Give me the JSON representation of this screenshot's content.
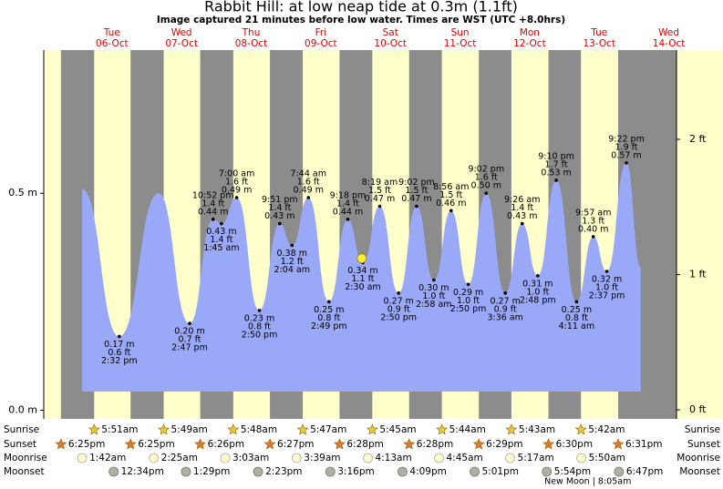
{
  "chart_data": {
    "type": "area",
    "title": "Rabbit Hill: at low  neap tide at 0.3m (1.1ft)",
    "subtitle": "Image captured 21 minutes before low water. Times are WST (UTC +8.0hrs)",
    "days": [
      "Tue",
      "Wed",
      "Thu",
      "Fri",
      "Sat",
      "Sun",
      "Mon",
      "Tue",
      "Wed"
    ],
    "dates": [
      "06-Oct",
      "07-Oct",
      "08-Oct",
      "09-Oct",
      "10-Oct",
      "11-Oct",
      "12-Oct",
      "13-Oct",
      "14-Oct"
    ],
    "x": [
      0.07,
      0.605,
      1.17,
      1.616,
      1.953,
      2.073,
      2.292,
      2.618,
      2.91,
      3.086,
      3.322,
      3.617,
      3.888,
      4.104,
      4.347,
      4.618,
      4.876,
      5.124,
      5.372,
      5.618,
      5.876,
      6.15,
      6.393,
      6.617,
      6.882,
      7.174,
      7.415,
      7.609,
      7.89,
      8.096
    ],
    "values": [
      0.51,
      0.17,
      0.5,
      0.2,
      0.44,
      0.43,
      0.49,
      0.23,
      0.43,
      0.38,
      0.49,
      0.25,
      0.44,
      0.34,
      0.47,
      0.27,
      0.47,
      0.3,
      0.46,
      0.29,
      0.5,
      0.27,
      0.43,
      0.31,
      0.53,
      0.25,
      0.4,
      0.32,
      0.57,
      0.33
    ],
    "value_labels": [
      null,
      "0.17 m",
      null,
      "0.20 m",
      "0.44 m",
      "0.43 m",
      "0.49 m",
      "0.23 m",
      "0.43 m",
      "0.38 m",
      "0.49 m",
      "0.25 m",
      "0.44 m",
      "0.34 m",
      "0.47 m",
      "0.27 m",
      "0.47 m",
      "0.30 m",
      "0.46 m",
      "0.29 m",
      "0.50 m",
      "0.27 m",
      "0.43 m",
      "0.31 m",
      "0.53 m",
      "0.25 m",
      "0.40 m",
      "0.32 m",
      "0.57 m",
      null
    ],
    "ft_labels": [
      null,
      "0.6 ft",
      null,
      "0.7 ft",
      "1.4 ft",
      "1.4 ft",
      "1.6 ft",
      "0.8 ft",
      "1.4 ft",
      "1.2 ft",
      "1.6 ft",
      "0.8 ft",
      "1.4 ft",
      "1.1 ft",
      "1.5 ft",
      "0.9 ft",
      "1.5 ft",
      "1.0 ft",
      "1.5 ft",
      "1.0 ft",
      "1.6 ft",
      "0.9 ft",
      "1.4 ft",
      "1.0 ft",
      "1.7 ft",
      "0.8 ft",
      "1.3 ft",
      "1.0 ft",
      "1.9 ft",
      null
    ],
    "time_labels": [
      null,
      "2:32 pm",
      null,
      "2:47 pm",
      "10:52 pm",
      "1:45 am",
      "7:00 am",
      "2:50 pm",
      "9:51 pm",
      "2:04 am",
      "7:44 am",
      "2:49 pm",
      "9:18 pm",
      "2:30 am",
      "8:19 am",
      "2:50 pm",
      "9:02 pm",
      "2:58 am",
      "8:56 am",
      "2:50 pm",
      "9:02 pm",
      "3:36 am",
      "9:26 am",
      "2:48 pm",
      "9:10 pm",
      "4:11 am",
      "9:57 am",
      "2:37 pm",
      "9:22 pm",
      null
    ],
    "now": {
      "x": 4.089,
      "value": 0.35
    },
    "color": "#9aa8f8",
    "day_color": "#ffffcc",
    "night_color": "#8c8c8c",
    "xlim": [
      -0.48,
      8.61
    ],
    "ylim": [
      -0.02,
      0.83
    ],
    "yticks": [
      {
        "value": 0,
        "label": "0.0 m"
      },
      {
        "value": 0.5,
        "label": "0.5 m"
      }
    ],
    "y2lim": [
      -0.067,
      2.66
    ],
    "y2ticks": [
      {
        "value": 0,
        "label": "0 ft"
      },
      {
        "value": 1,
        "label": "1 ft"
      },
      {
        "value": 2,
        "label": "2 ft"
      }
    ],
    "events": [
      {
        "name": "Sunrise",
        "x": [
          0.244,
          1.243,
          2.242,
          3.241,
          4.24,
          5.239,
          6.238,
          7.2375
        ],
        "labels": [
          "5:51am",
          "5:49am",
          "5:48am",
          "5:47am",
          "5:45am",
          "5:44am",
          "5:43am",
          "5:42am"
        ]
      },
      {
        "name": "Sunset",
        "x": [
          -0.233,
          0.767,
          1.768,
          2.769,
          3.769,
          4.769,
          5.77,
          6.771,
          7.772
        ],
        "labels": [
          "6:25pm",
          "6:25pm",
          "6:26pm",
          "6:27pm",
          "6:28pm",
          "6:28pm",
          "6:29pm",
          "6:30pm",
          "6:31pm"
        ]
      },
      {
        "name": "Moonrise",
        "x": [
          0.071,
          1.101,
          2.127,
          3.152,
          4.176,
          5.198,
          6.22,
          7.243
        ],
        "labels": [
          "1:42am",
          "2:25am",
          "3:03am",
          "3:39am",
          "4:13am",
          "4:45am",
          "5:17am",
          "5:50am"
        ]
      },
      {
        "name": "Moonset",
        "x": [
          0.524,
          1.562,
          2.599,
          3.636,
          4.673,
          5.709,
          6.746,
          7.783
        ],
        "labels": [
          "12:34pm",
          "1:29pm",
          "2:23pm",
          "3:16pm",
          "4:09pm",
          "5:01pm",
          "5:54pm",
          "6:47pm"
        ]
      }
    ],
    "moon_phase": {
      "label": "New Moon | 8:05am",
      "x": 7.336
    }
  }
}
